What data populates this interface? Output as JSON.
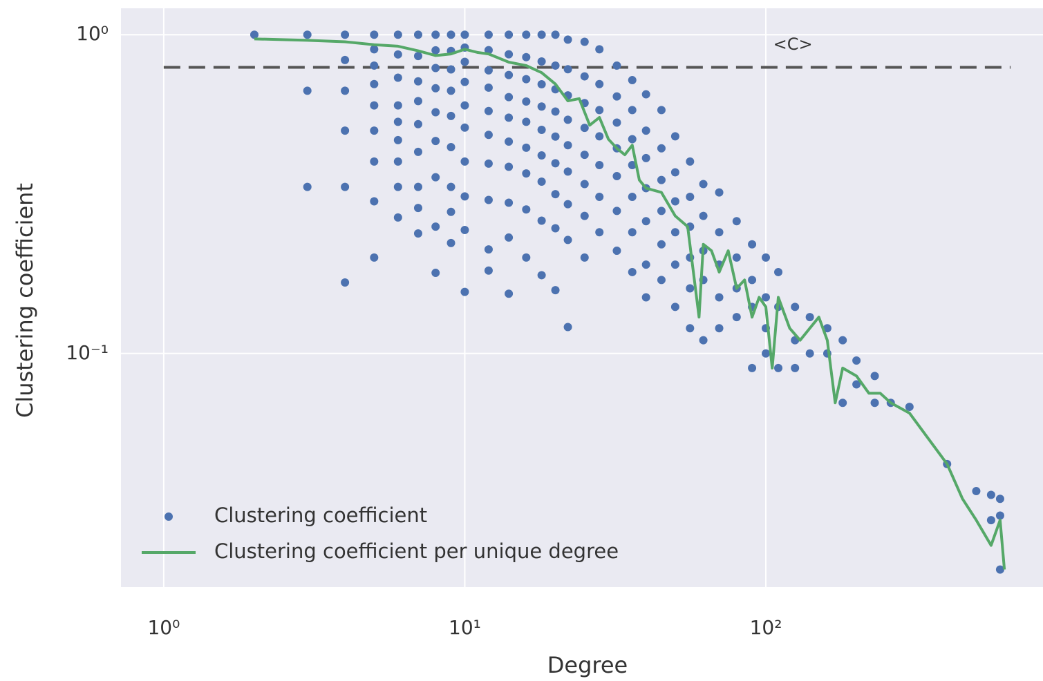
{
  "chart_data": {
    "type": "scatter",
    "xlabel": "Degree",
    "ylabel": "Clustering coefficient",
    "xscale": "log",
    "yscale": "log",
    "xlim": [
      0.721,
      833
    ],
    "ylim": [
      0.0185,
      1.21
    ],
    "xticks": [
      {
        "value": 1,
        "label": "10⁰"
      },
      {
        "value": 10,
        "label": "10¹"
      },
      {
        "value": 100,
        "label": "10²"
      }
    ],
    "yticks": [
      {
        "value": 0.1,
        "label": "10⁻¹"
      },
      {
        "value": 1,
        "label": "10⁰"
      }
    ],
    "grid": true,
    "background": "#eaeaf2",
    "legend": "lower left",
    "hline": {
      "y": 0.79,
      "xmin": 1,
      "xmax": 650,
      "color": "#555555",
      "label": "<C>",
      "label_x": 123,
      "label_y": 0.93
    },
    "series": [
      {
        "name": "Clustering coefficient",
        "kind": "scatter",
        "color": "#4c72b0",
        "x": [
          2,
          3,
          3,
          3,
          4,
          4,
          4,
          4,
          4,
          4,
          5,
          5,
          5,
          5,
          5,
          5,
          5,
          5,
          5,
          6,
          6,
          6,
          6,
          6,
          6,
          6,
          6,
          6,
          7,
          7,
          7,
          7,
          7,
          7,
          7,
          7,
          7,
          8,
          8,
          8,
          8,
          8,
          8,
          8,
          8,
          8,
          9,
          9,
          9,
          9,
          9,
          9,
          9,
          9,
          9,
          10,
          10,
          10,
          10,
          10,
          10,
          10,
          10,
          10,
          10,
          12,
          12,
          12,
          12,
          12,
          12,
          12,
          12,
          12,
          12,
          14,
          14,
          14,
          14,
          14,
          14,
          14,
          14,
          14,
          14,
          16,
          16,
          16,
          16,
          16,
          16,
          16,
          16,
          16,
          18,
          18,
          18,
          18,
          18,
          18,
          18,
          18,
          18,
          20,
          20,
          20,
          20,
          20,
          20,
          20,
          20,
          20,
          22,
          22,
          22,
          22,
          22,
          22,
          22,
          22,
          22,
          25,
          25,
          25,
          25,
          25,
          25,
          25,
          25,
          28,
          28,
          28,
          28,
          28,
          28,
          28,
          32,
          32,
          32,
          32,
          32,
          32,
          32,
          36,
          36,
          36,
          36,
          36,
          36,
          36,
          40,
          40,
          40,
          40,
          40,
          40,
          40,
          45,
          45,
          45,
          45,
          45,
          45,
          50,
          50,
          50,
          50,
          50,
          50,
          56,
          56,
          56,
          56,
          56,
          56,
          62,
          62,
          62,
          62,
          62,
          70,
          70,
          70,
          70,
          70,
          80,
          80,
          80,
          80,
          90,
          90,
          90,
          90,
          100,
          100,
          100,
          100,
          110,
          110,
          110,
          125,
          125,
          125,
          140,
          140,
          160,
          160,
          180,
          180,
          200,
          200,
          230,
          230,
          260,
          300,
          400,
          500,
          560,
          560,
          600,
          600,
          600
        ],
        "values": [
          1,
          1,
          0.667,
          0.333,
          1,
          0.833,
          0.667,
          0.5,
          0.333,
          0.167,
          1,
          0.9,
          0.8,
          0.7,
          0.6,
          0.5,
          0.4,
          0.3,
          0.2,
          1,
          0.867,
          0.733,
          0.6,
          0.533,
          0.467,
          0.4,
          0.333,
          0.267,
          1,
          0.857,
          0.714,
          0.619,
          0.524,
          0.429,
          0.333,
          0.286,
          0.238,
          1,
          0.893,
          0.786,
          0.679,
          0.571,
          0.464,
          0.357,
          0.25,
          0.179,
          1,
          0.889,
          0.778,
          0.667,
          0.556,
          0.444,
          0.333,
          0.278,
          0.222,
          1,
          0.911,
          0.822,
          0.711,
          0.6,
          0.511,
          0.4,
          0.311,
          0.244,
          0.156,
          1,
          0.894,
          0.773,
          0.682,
          0.576,
          0.485,
          0.394,
          0.303,
          0.212,
          0.182,
          1,
          0.868,
          0.747,
          0.637,
          0.549,
          0.462,
          0.385,
          0.297,
          0.231,
          0.154,
          1,
          0.85,
          0.725,
          0.617,
          0.533,
          0.442,
          0.367,
          0.283,
          0.2,
          1,
          0.824,
          0.699,
          0.595,
          0.503,
          0.418,
          0.346,
          0.261,
          0.176,
          1,
          0.8,
          0.674,
          0.574,
          0.479,
          0.395,
          0.316,
          0.247,
          0.158,
          0.965,
          0.779,
          0.645,
          0.541,
          0.45,
          0.372,
          0.294,
          0.227,
          0.121,
          0.95,
          0.74,
          0.61,
          0.51,
          0.42,
          0.34,
          0.27,
          0.2,
          0.9,
          0.7,
          0.58,
          0.48,
          0.39,
          0.31,
          0.24,
          0.8,
          0.64,
          0.53,
          0.44,
          0.36,
          0.28,
          0.21,
          0.72,
          0.58,
          0.47,
          0.39,
          0.31,
          0.24,
          0.18,
          0.65,
          0.5,
          0.41,
          0.33,
          0.26,
          0.19,
          0.15,
          0.58,
          0.44,
          0.35,
          0.28,
          0.22,
          0.17,
          0.48,
          0.37,
          0.3,
          0.24,
          0.19,
          0.14,
          0.4,
          0.31,
          0.25,
          0.2,
          0.16,
          0.12,
          0.34,
          0.27,
          0.21,
          0.17,
          0.11,
          0.32,
          0.24,
          0.19,
          0.15,
          0.12,
          0.26,
          0.2,
          0.16,
          0.13,
          0.22,
          0.17,
          0.14,
          0.09,
          0.2,
          0.15,
          0.12,
          0.1,
          0.18,
          0.14,
          0.09,
          0.14,
          0.11,
          0.09,
          0.13,
          0.1,
          0.12,
          0.1,
          0.11,
          0.07,
          0.095,
          0.08,
          0.085,
          0.07,
          0.07,
          0.068,
          0.045,
          0.037,
          0.03,
          0.036,
          0.035,
          0.031,
          0.021
        ]
      },
      {
        "name": "Clustering coefficient per unique degree",
        "kind": "line",
        "color": "#55a868",
        "x": [
          2,
          3,
          4,
          5,
          6,
          7,
          8,
          9,
          10,
          11,
          12,
          14,
          16,
          18,
          20,
          22,
          24,
          26,
          28,
          30,
          32,
          34,
          36,
          38,
          40,
          45,
          50,
          55,
          60,
          62,
          66,
          70,
          75,
          80,
          85,
          90,
          95,
          100,
          105,
          110,
          120,
          130,
          140,
          150,
          160,
          170,
          180,
          200,
          220,
          240,
          260,
          300,
          400,
          450,
          500,
          560,
          600,
          620
        ],
        "values": [
          0.97,
          0.96,
          0.95,
          0.93,
          0.92,
          0.89,
          0.86,
          0.87,
          0.9,
          0.88,
          0.87,
          0.82,
          0.8,
          0.76,
          0.7,
          0.62,
          0.63,
          0.52,
          0.55,
          0.47,
          0.44,
          0.42,
          0.45,
          0.35,
          0.33,
          0.32,
          0.27,
          0.25,
          0.13,
          0.22,
          0.21,
          0.18,
          0.21,
          0.16,
          0.17,
          0.13,
          0.15,
          0.14,
          0.09,
          0.15,
          0.12,
          0.11,
          0.12,
          0.13,
          0.11,
          0.07,
          0.09,
          0.085,
          0.075,
          0.075,
          0.07,
          0.065,
          0.045,
          0.035,
          0.03,
          0.025,
          0.03,
          0.021
        ]
      }
    ]
  }
}
